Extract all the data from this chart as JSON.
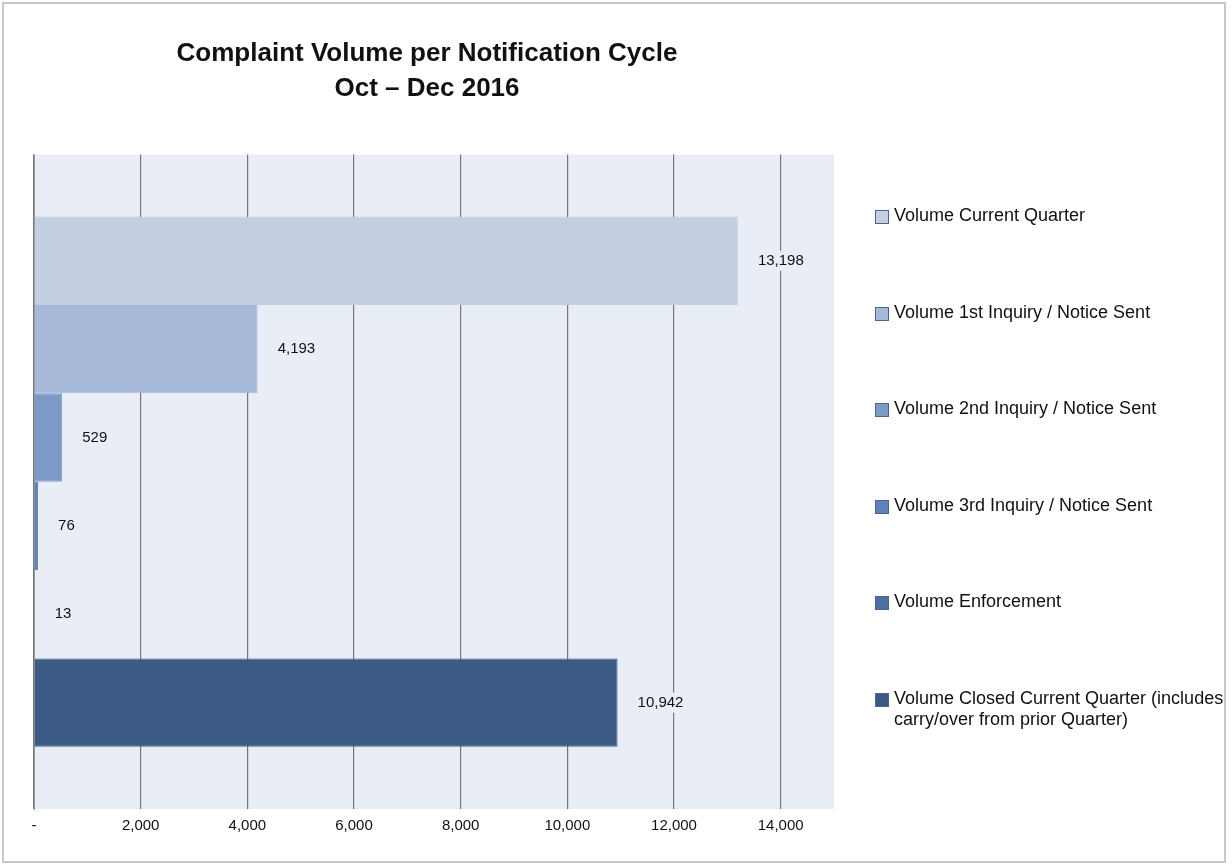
{
  "chart_data": {
    "type": "bar",
    "orientation": "horizontal",
    "title": "Complaint Volume per Notification Cycle",
    "subtitle": "Oct – Dec 2016",
    "categories": [
      null
    ],
    "series": [
      {
        "name": "Volume Current Quarter",
        "color": "#c3cfe1",
        "values": [
          13198
        ],
        "value_labels": [
          "13,198"
        ]
      },
      {
        "name": "Volume 1st Inquiry / Notice Sent",
        "color": "#a6b9d8",
        "values": [
          4193
        ],
        "value_labels": [
          "4,193"
        ]
      },
      {
        "name": "Volume 2nd Inquiry / Notice Sent",
        "color": "#7e9bc8",
        "values": [
          529
        ],
        "value_labels": [
          "529"
        ]
      },
      {
        "name": "Volume 3rd Inquiry / Notice Sent",
        "color": "#5f82b8",
        "values": [
          76
        ],
        "value_labels": [
          "76"
        ]
      },
      {
        "name": "Volume Enforcement",
        "color": "#4b6fa3",
        "values": [
          13
        ],
        "value_labels": [
          "13"
        ]
      },
      {
        "name": "Volume Closed Current Quarter (includes carry/over from prior Quarter)",
        "color": "#3b5b85",
        "values": [
          10942
        ],
        "value_labels": [
          "10,942"
        ]
      }
    ],
    "xlim": [
      0,
      15000
    ],
    "xticks": [
      {
        "value": 0,
        "label": "-"
      },
      {
        "value": 2000,
        "label": "2,000"
      },
      {
        "value": 4000,
        "label": "4,000"
      },
      {
        "value": 6000,
        "label": "6,000"
      },
      {
        "value": 8000,
        "label": "8,000"
      },
      {
        "value": 10000,
        "label": "10,000"
      },
      {
        "value": 12000,
        "label": "12,000"
      },
      {
        "value": 14000,
        "label": "14,000"
      }
    ],
    "grid": "x",
    "legend": "right"
  }
}
